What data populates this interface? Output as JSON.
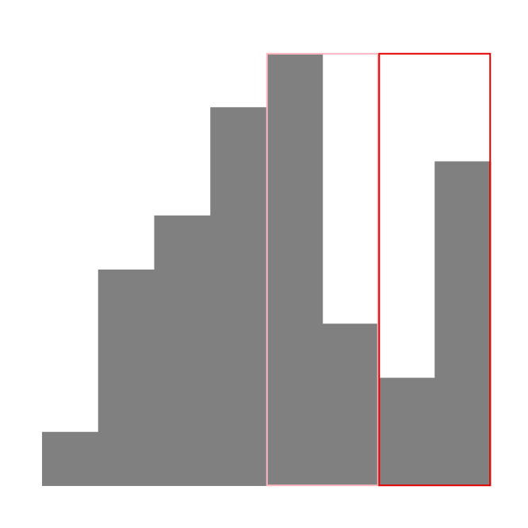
{
  "chart_data": {
    "type": "bar",
    "title": "",
    "xlabel": "",
    "ylabel": "",
    "values": [
      1,
      4,
      5,
      7,
      8,
      3,
      2,
      6
    ],
    "ylim": [
      0,
      8
    ],
    "grid": false,
    "bar_color": "#808080",
    "highlights": [
      {
        "bar_indices": [
          4,
          5
        ],
        "color": "#ffb6c1"
      },
      {
        "bar_indices": [
          6,
          7
        ],
        "color": "#e60000"
      }
    ]
  }
}
